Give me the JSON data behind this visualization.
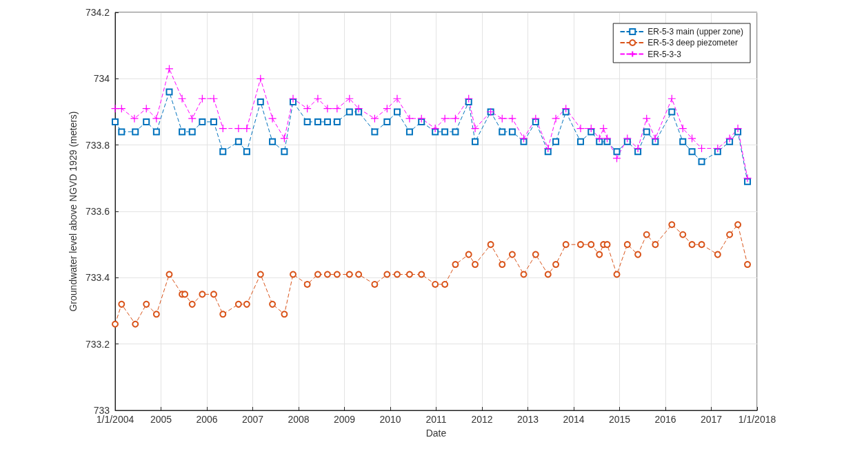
{
  "chart_data": {
    "type": "line",
    "xlabel": "Date",
    "ylabel": "Groundwater level above NGVD 1929 (meters)",
    "xlim": [
      2004,
      2018
    ],
    "xticks": [
      {
        "value": 2004,
        "label": "1/1/2004"
      },
      2005,
      2006,
      2007,
      2008,
      2009,
      2010,
      2011,
      2012,
      2013,
      2014,
      2015,
      2016,
      2017,
      {
        "value": 2018,
        "label": "1/1/2018"
      }
    ],
    "ylim": [
      733,
      734.2
    ],
    "yticks": [
      733,
      733.2,
      733.4,
      733.6,
      733.8,
      734,
      734.2
    ],
    "grid": true,
    "legend": "top right",
    "line_style": "dashed",
    "series": [
      {
        "name": "ER-5-3 main (upper zone)",
        "color": "#0072bd",
        "marker": "square",
        "x": [
          2004.0,
          2004.14,
          2004.44,
          2004.68,
          2004.9,
          2005.18,
          2005.46,
          2005.68,
          2005.9,
          2006.15,
          2006.35,
          2006.69,
          2006.87,
          2007.17,
          2007.43,
          2007.69,
          2007.88,
          2008.19,
          2008.42,
          2008.63,
          2008.84,
          2009.11,
          2009.31,
          2009.66,
          2009.93,
          2010.15,
          2010.42,
          2010.68,
          2010.98,
          2011.19,
          2011.42,
          2011.71,
          2011.85,
          2012.19,
          2012.44,
          2012.66,
          2012.91,
          2013.17,
          2013.44,
          2013.61,
          2013.83,
          2014.15,
          2014.38,
          2014.56,
          2014.73,
          2014.94,
          2015.17,
          2015.4,
          2015.59,
          2015.78,
          2016.14,
          2016.38,
          2016.58,
          2016.79,
          2017.14,
          2017.4,
          2017.58,
          2017.79
        ],
        "values": [
          733.87,
          733.84,
          733.84,
          733.87,
          733.84,
          733.96,
          733.84,
          733.84,
          733.87,
          733.87,
          733.78,
          733.81,
          733.78,
          733.93,
          733.81,
          733.78,
          733.93,
          733.87,
          733.87,
          733.87,
          733.87,
          733.9,
          733.9,
          733.84,
          733.87,
          733.9,
          733.84,
          733.87,
          733.84,
          733.84,
          733.84,
          733.93,
          733.81,
          733.9,
          733.84,
          733.84,
          733.81,
          733.87,
          733.78,
          733.81,
          733.9,
          733.81,
          733.84,
          733.81,
          733.81,
          733.78,
          733.81,
          733.78,
          733.84,
          733.81,
          733.9,
          733.81,
          733.78,
          733.75,
          733.78,
          733.81,
          733.84,
          733.69
        ]
      },
      {
        "name": "ER-5-3 deep piezometer",
        "color": "#d95319",
        "marker": "circle",
        "x": [
          2004.0,
          2004.14,
          2004.44,
          2004.68,
          2004.9,
          2005.18,
          2005.46,
          2005.52,
          2005.68,
          2005.9,
          2006.15,
          2006.35,
          2006.69,
          2006.87,
          2007.17,
          2007.43,
          2007.69,
          2007.88,
          2008.19,
          2008.42,
          2008.63,
          2008.84,
          2009.11,
          2009.31,
          2009.66,
          2009.93,
          2010.15,
          2010.42,
          2010.68,
          2010.98,
          2011.19,
          2011.42,
          2011.71,
          2011.85,
          2012.19,
          2012.44,
          2012.66,
          2012.91,
          2013.17,
          2013.44,
          2013.61,
          2013.83,
          2014.15,
          2014.38,
          2014.56,
          2014.65,
          2014.73,
          2014.94,
          2015.17,
          2015.4,
          2015.59,
          2015.78,
          2016.14,
          2016.38,
          2016.58,
          2016.79,
          2017.14,
          2017.4,
          2017.58,
          2017.79
        ],
        "values": [
          733.26,
          733.32,
          733.26,
          733.32,
          733.29,
          733.41,
          733.35,
          733.35,
          733.32,
          733.35,
          733.35,
          733.29,
          733.32,
          733.32,
          733.41,
          733.32,
          733.29,
          733.41,
          733.38,
          733.41,
          733.41,
          733.41,
          733.41,
          733.41,
          733.38,
          733.41,
          733.41,
          733.41,
          733.41,
          733.38,
          733.38,
          733.44,
          733.47,
          733.44,
          733.5,
          733.44,
          733.47,
          733.41,
          733.47,
          733.41,
          733.44,
          733.5,
          733.5,
          733.5,
          733.47,
          733.5,
          733.5,
          733.41,
          733.5,
          733.47,
          733.53,
          733.5,
          733.56,
          733.53,
          733.5,
          733.5,
          733.47,
          733.53,
          733.56,
          733.44
        ]
      },
      {
        "name": "ER-5-3-3",
        "color": "#ff00ff",
        "marker": "cross",
        "x": [
          2004.0,
          2004.14,
          2004.42,
          2004.68,
          2004.9,
          2005.18,
          2005.46,
          2005.68,
          2005.9,
          2006.15,
          2006.35,
          2006.69,
          2006.87,
          2007.17,
          2007.43,
          2007.69,
          2007.88,
          2008.19,
          2008.42,
          2008.63,
          2008.84,
          2009.11,
          2009.31,
          2009.66,
          2009.93,
          2010.15,
          2010.42,
          2010.68,
          2010.98,
          2011.19,
          2011.42,
          2011.71,
          2011.85,
          2012.19,
          2012.44,
          2012.66,
          2012.91,
          2013.17,
          2013.44,
          2013.61,
          2013.83,
          2014.15,
          2014.38,
          2014.56,
          2014.65,
          2014.73,
          2014.94,
          2015.17,
          2015.4,
          2015.59,
          2015.78,
          2016.14,
          2016.38,
          2016.58,
          2016.79,
          2017.14,
          2017.4,
          2017.58,
          2017.79
        ],
        "values": [
          733.91,
          733.91,
          733.88,
          733.91,
          733.88,
          734.03,
          733.94,
          733.88,
          733.94,
          733.94,
          733.85,
          733.85,
          733.85,
          734.0,
          733.88,
          733.82,
          733.94,
          733.91,
          733.94,
          733.91,
          733.91,
          733.94,
          733.91,
          733.88,
          733.91,
          733.94,
          733.88,
          733.88,
          733.85,
          733.88,
          733.88,
          733.94,
          733.85,
          733.9,
          733.88,
          733.88,
          733.82,
          733.88,
          733.79,
          733.88,
          733.91,
          733.85,
          733.85,
          733.82,
          733.85,
          733.82,
          733.76,
          733.82,
          733.79,
          733.88,
          733.82,
          733.94,
          733.85,
          733.82,
          733.79,
          733.79,
          733.82,
          733.85,
          733.7
        ]
      }
    ]
  }
}
